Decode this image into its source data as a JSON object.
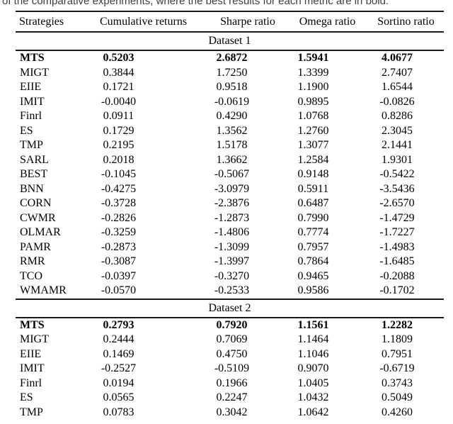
{
  "caption": "of the comparative experiments, where the best results for each metric are in bold.",
  "table": {
    "columns": [
      "Strategies",
      "Cumulative returns",
      "Sharpe ratio",
      "Omega ratio",
      "Sortino ratio"
    ],
    "sections": [
      {
        "label": "Dataset 1",
        "rows": [
          {
            "strategy": "MTS",
            "values": [
              "0.5203",
              "2.6872",
              "1.5941",
              "4.0677"
            ],
            "bold": true
          },
          {
            "strategy": "MIGT",
            "values": [
              "0.3844",
              "1.7250",
              "1.3399",
              "2.7407"
            ],
            "bold": false
          },
          {
            "strategy": "EIIE",
            "values": [
              "0.1721",
              "0.9518",
              "1.1900",
              "1.6544"
            ],
            "bold": false
          },
          {
            "strategy": "IMIT",
            "values": [
              "-0.0040",
              "-0.0619",
              "0.9895",
              "-0.0826"
            ],
            "bold": false
          },
          {
            "strategy": "Finrl",
            "values": [
              "0.0911",
              "0.4290",
              "1.0768",
              "0.8286"
            ],
            "bold": false
          },
          {
            "strategy": "ES",
            "values": [
              "0.1729",
              "1.3562",
              "1.2760",
              "2.3045"
            ],
            "bold": false
          },
          {
            "strategy": "TMP",
            "values": [
              "0.2195",
              "1.5178",
              "1.3077",
              "2.1441"
            ],
            "bold": false
          },
          {
            "strategy": "SARL",
            "values": [
              "0.2018",
              "1.3662",
              "1.2584",
              "1.9301"
            ],
            "bold": false
          },
          {
            "strategy": "BEST",
            "values": [
              "-0.1045",
              "-0.5067",
              "0.9148",
              "-0.5422"
            ],
            "bold": false
          },
          {
            "strategy": "BNN",
            "values": [
              "-0.4275",
              "-3.0979",
              "0.5911",
              "-3.5436"
            ],
            "bold": false
          },
          {
            "strategy": "CORN",
            "values": [
              "-0.3728",
              "-2.3876",
              "0.6487",
              "-2.6570"
            ],
            "bold": false
          },
          {
            "strategy": "CWMR",
            "values": [
              "-0.2826",
              "-1.2873",
              "0.7990",
              "-1.4729"
            ],
            "bold": false
          },
          {
            "strategy": "OLMAR",
            "values": [
              "-0.3259",
              "-1.4806",
              "0.7774",
              "-1.7227"
            ],
            "bold": false
          },
          {
            "strategy": "PAMR",
            "values": [
              "-0.2873",
              "-1.3099",
              "0.7957",
              "-1.4983"
            ],
            "bold": false
          },
          {
            "strategy": "RMR",
            "values": [
              "-0.3087",
              "-1.3997",
              "0.7864",
              "-1.6485"
            ],
            "bold": false
          },
          {
            "strategy": "TCO",
            "values": [
              "-0.0397",
              "-0.3270",
              "0.9465",
              "-0.2088"
            ],
            "bold": false
          },
          {
            "strategy": "WMAMR",
            "values": [
              "-0.0570",
              "-0.2533",
              "0.9586",
              "-0.1702"
            ],
            "bold": false
          }
        ]
      },
      {
        "label": "Dataset 2",
        "rows": [
          {
            "strategy": "MTS",
            "values": [
              "0.2793",
              "0.7920",
              "1.1561",
              "1.2282"
            ],
            "bold": true
          },
          {
            "strategy": "MIGT",
            "values": [
              "0.2444",
              "0.7069",
              "1.1464",
              "1.1809"
            ],
            "bold": false
          },
          {
            "strategy": "EIIE",
            "values": [
              "0.1469",
              "0.4750",
              "1.1046",
              "0.7951"
            ],
            "bold": false
          },
          {
            "strategy": "IMIT",
            "values": [
              "-0.2527",
              "-0.5109",
              "0.9070",
              "-0.6719"
            ],
            "bold": false
          },
          {
            "strategy": "Finrl",
            "values": [
              "0.0194",
              "0.1966",
              "1.0405",
              "0.3743"
            ],
            "bold": false
          },
          {
            "strategy": "ES",
            "values": [
              "0.0565",
              "0.2247",
              "1.0432",
              "0.5049"
            ],
            "bold": false
          },
          {
            "strategy": "TMP",
            "values": [
              "0.0783",
              "0.3042",
              "1.0642",
              "0.4260"
            ],
            "bold": false
          }
        ]
      }
    ]
  }
}
